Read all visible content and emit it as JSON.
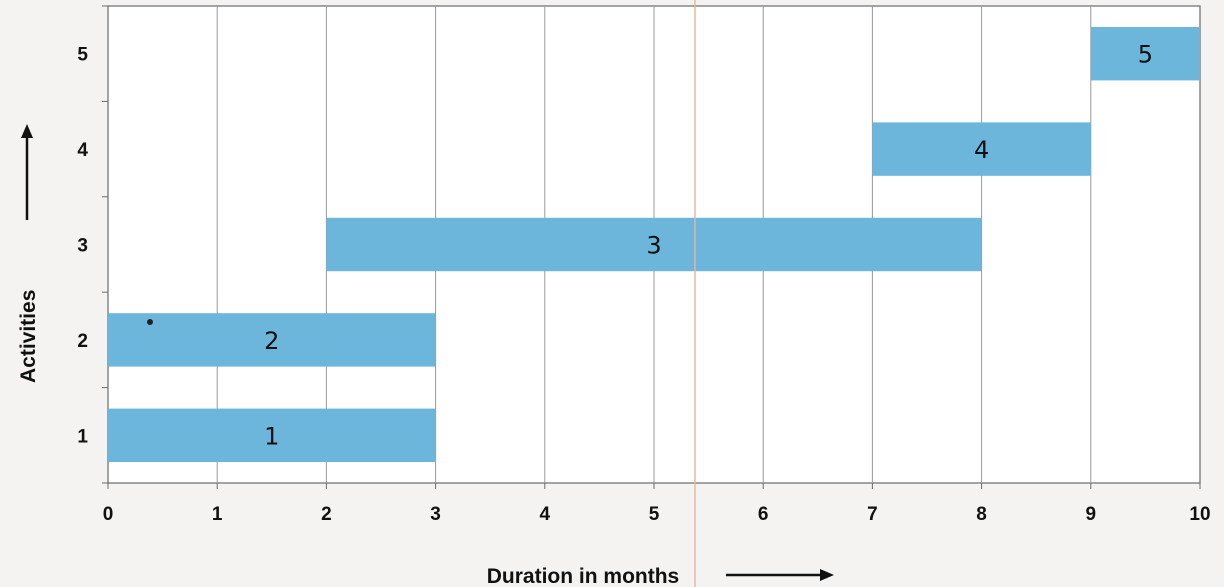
{
  "chart_data": {
    "type": "bar",
    "orientation": "horizontal-gantt",
    "xlabel": "Duration in months",
    "ylabel": "Activities",
    "xlim": [
      0,
      10
    ],
    "ylim": [
      0.5,
      5.5
    ],
    "xticks": [
      "0",
      "1",
      "2",
      "3",
      "4",
      "5",
      "6",
      "7",
      "8",
      "9",
      "10"
    ],
    "yticks": [
      "1",
      "2",
      "3",
      "4",
      "5"
    ],
    "grid": "vertical",
    "bar_color": "#6cb6dc",
    "tasks": [
      {
        "label": "1",
        "activity": 1,
        "start": 0,
        "end": 3
      },
      {
        "label": "2",
        "activity": 2,
        "start": 0,
        "end": 3
      },
      {
        "label": "3",
        "activity": 3,
        "start": 2,
        "end": 8
      },
      {
        "label": "4",
        "activity": 4,
        "start": 7,
        "end": 9
      },
      {
        "label": "5",
        "activity": 5,
        "start": 9,
        "end": 10
      }
    ]
  }
}
